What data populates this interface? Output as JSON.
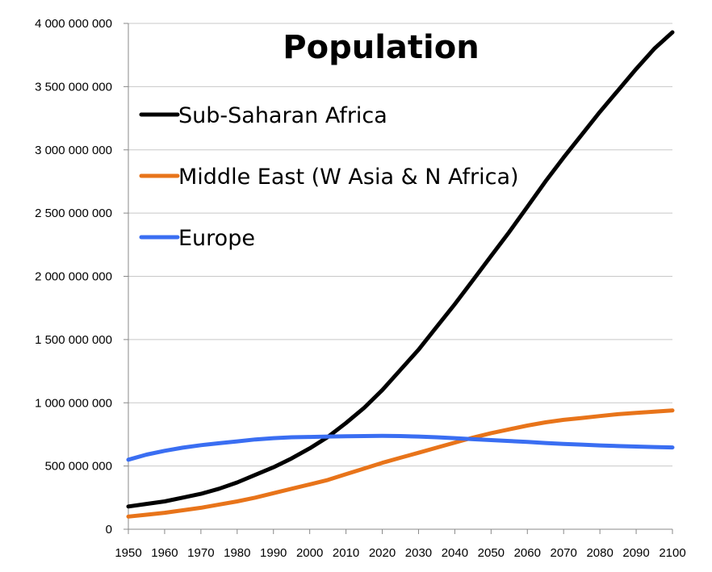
{
  "chart_data": {
    "type": "line",
    "title": "Population",
    "xlabel": "",
    "ylabel": "",
    "xlim": [
      1950,
      2100
    ],
    "ylim": [
      0,
      4000000000
    ],
    "x_ticks": [
      "1950",
      "1960",
      "1970",
      "1980",
      "1990",
      "2000",
      "2010",
      "2020",
      "2030",
      "2040",
      "2050",
      "2060",
      "2070",
      "2080",
      "2090",
      "2100"
    ],
    "y_ticks": [
      "0",
      "500 000 000",
      "1 000 000 000",
      "1 500 000 000",
      "2 000 000 000",
      "2 500 000 000",
      "3 000 000 000",
      "3 500 000 000",
      "4 000 000 000"
    ],
    "grid": "horizontal",
    "legend_position": "top-left",
    "x": [
      1950,
      1955,
      1960,
      1965,
      1970,
      1975,
      1980,
      1985,
      1990,
      1995,
      2000,
      2005,
      2010,
      2015,
      2020,
      2025,
      2030,
      2035,
      2040,
      2045,
      2050,
      2055,
      2060,
      2065,
      2070,
      2075,
      2080,
      2085,
      2090,
      2095,
      2100
    ],
    "series": [
      {
        "name": "Sub-Saharan Africa",
        "color": "#000000",
        "values": [
          180000000,
          200000000,
          220000000,
          250000000,
          280000000,
          320000000,
          370000000,
          430000000,
          490000000,
          560000000,
          640000000,
          730000000,
          840000000,
          960000000,
          1100000000,
          1260000000,
          1420000000,
          1600000000,
          1780000000,
          1970000000,
          2160000000,
          2350000000,
          2550000000,
          2750000000,
          2940000000,
          3120000000,
          3300000000,
          3470000000,
          3640000000,
          3800000000,
          3930000000
        ]
      },
      {
        "name": "Middle East (W Asia & N Africa)",
        "color": "#e8741a",
        "values": [
          100000000,
          115000000,
          130000000,
          150000000,
          170000000,
          195000000,
          220000000,
          250000000,
          285000000,
          320000000,
          355000000,
          390000000,
          435000000,
          480000000,
          525000000,
          565000000,
          605000000,
          645000000,
          685000000,
          725000000,
          760000000,
          790000000,
          820000000,
          845000000,
          865000000,
          880000000,
          895000000,
          910000000,
          920000000,
          930000000,
          940000000
        ]
      },
      {
        "name": "Europe",
        "color": "#3a6ef2",
        "values": [
          550000000,
          590000000,
          620000000,
          645000000,
          665000000,
          680000000,
          695000000,
          710000000,
          720000000,
          727000000,
          730000000,
          733000000,
          735000000,
          737000000,
          738000000,
          737000000,
          733000000,
          727000000,
          720000000,
          712000000,
          705000000,
          698000000,
          690000000,
          682000000,
          675000000,
          669000000,
          663000000,
          658000000,
          654000000,
          650000000,
          647000000
        ]
      }
    ]
  }
}
